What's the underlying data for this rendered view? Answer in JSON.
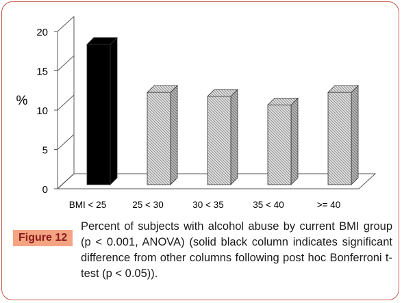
{
  "chart_data": {
    "type": "bar",
    "categories": [
      "BMI < 25",
      "25 < 30",
      "30 < 35",
      "35 < 40",
      ">= 40"
    ],
    "values": [
      18.7,
      12.6,
      12.1,
      11.0,
      12.6
    ],
    "highlight_index": 0,
    "ylabel": "%",
    "ylim": [
      0,
      20
    ],
    "yticks": [
      0,
      5,
      10,
      15,
      20
    ],
    "grid": false,
    "style": "3d-bar",
    "colors": {
      "highlight": "#000000",
      "normal": "#cfcfcf",
      "hatch": "#8a8a8a"
    }
  },
  "caption": {
    "label": "Figure 12",
    "text": "Percent of subjects with alcohol abuse by current BMI group (p < 0.001, ANOVA) (solid black column indicates significant difference from other columns following post hoc Bonferroni t-test (p < 0.05))."
  }
}
